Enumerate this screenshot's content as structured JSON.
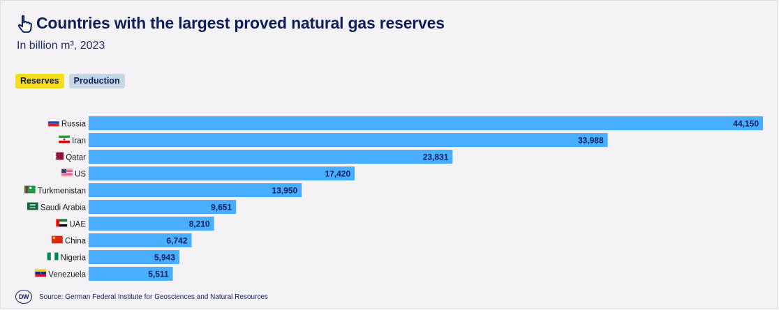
{
  "header": {
    "title": "Countries with the largest proved natural gas reserves",
    "subtitle": "In billion m³, 2023"
  },
  "tabs": [
    {
      "label": "Reserves",
      "active": true
    },
    {
      "label": "Production",
      "active": false
    }
  ],
  "footer": {
    "logo_text": "DW",
    "source": "Source: German Federal Institute for Geosciences and Natural Resources"
  },
  "colors": {
    "bar": "#4aaeff",
    "label_text": "#0c1f5c",
    "active_tab": "#f7dc1e",
    "inactive_tab": "#c6d6e4"
  },
  "chart_data": {
    "type": "bar",
    "orientation": "horizontal",
    "title": "Countries with the largest proved natural gas reserves",
    "subtitle": "In billion m³, 2023",
    "categories": [
      "Russia",
      "Iran",
      "Qatar",
      "US",
      "Turkmenistan",
      "Saudi Arabia",
      "UAE",
      "China",
      "Nigeria",
      "Venezuela"
    ],
    "value_labels": [
      "44,150",
      "33,988",
      "23,831",
      "17,420",
      "13,950",
      "9,651",
      "8,210",
      "6,742",
      "5,943",
      "5,511"
    ],
    "values": [
      44150,
      33988,
      23831,
      17420,
      13950,
      9651,
      8210,
      6742,
      5943,
      5511
    ],
    "flags": [
      "russia-flag-icon",
      "iran-flag-icon",
      "qatar-flag-icon",
      "us-flag-icon",
      "turkmenistan-flag-icon",
      "saudi-arabia-flag-icon",
      "uae-flag-icon",
      "china-flag-icon",
      "nigeria-flag-icon",
      "venezuela-flag-icon"
    ],
    "xlim": [
      0,
      44150
    ],
    "grid": false,
    "legend": "none"
  }
}
